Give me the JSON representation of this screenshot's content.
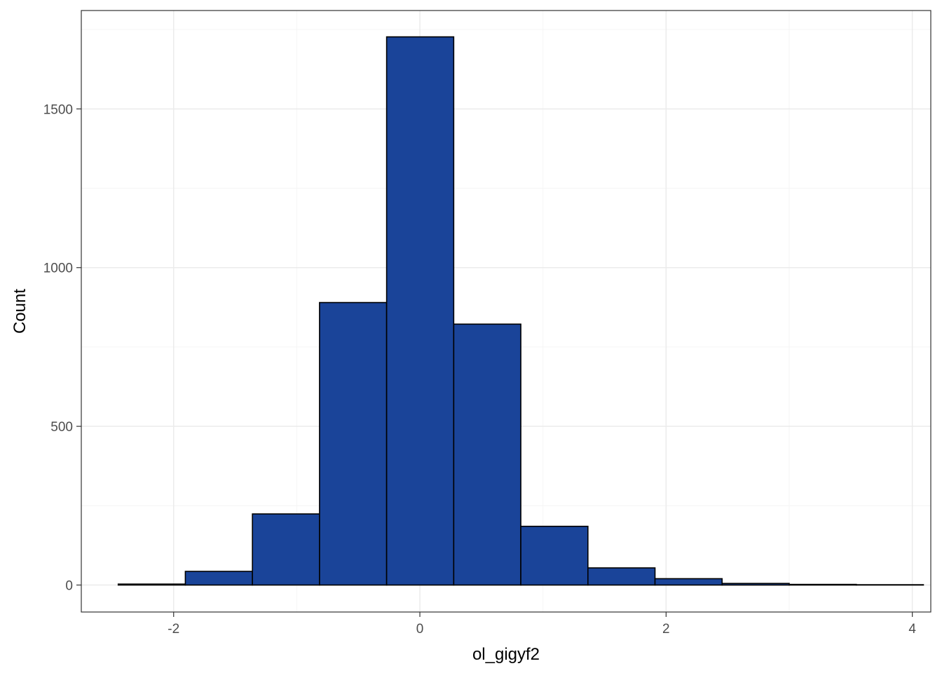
{
  "chart_data": {
    "type": "bar",
    "xlabel": "ol_gigyf2",
    "ylabel": "Count",
    "xlim": [
      -2.75,
      4.15
    ],
    "ylim": [
      -85,
      1810
    ],
    "x_ticks": [
      -2,
      0,
      2,
      4
    ],
    "y_ticks": [
      0,
      500,
      1000,
      1500
    ],
    "x_tick_labels": [
      "-2",
      "0",
      "2",
      "4"
    ],
    "y_tick_labels": [
      "0",
      "500",
      "1000",
      "1500"
    ],
    "grid": true,
    "legend": "none",
    "bin_width": 0.545,
    "bins": [
      {
        "x0": -2.45,
        "x1": -1.905,
        "count": 3
      },
      {
        "x0": -1.905,
        "x1": -1.36,
        "count": 43
      },
      {
        "x0": -1.36,
        "x1": -0.815,
        "count": 224
      },
      {
        "x0": -0.815,
        "x1": -0.27,
        "count": 890
      },
      {
        "x0": -0.27,
        "x1": 0.275,
        "count": 1727
      },
      {
        "x0": 0.275,
        "x1": 0.82,
        "count": 822
      },
      {
        "x0": 0.82,
        "x1": 1.365,
        "count": 185
      },
      {
        "x0": 1.365,
        "x1": 1.91,
        "count": 54
      },
      {
        "x0": 1.91,
        "x1": 2.455,
        "count": 20
      },
      {
        "x0": 2.455,
        "x1": 3.0,
        "count": 5
      },
      {
        "x0": 3.0,
        "x1": 3.545,
        "count": 2
      },
      {
        "x0": 3.545,
        "x1": 4.09,
        "count": 1
      }
    ],
    "colors": {
      "fill": "#1a4499",
      "outline": "#000000",
      "grid_major": "#ebebeb",
      "grid_minor": "#f5f5f5",
      "panel_border": "#333333",
      "tick_text": "#4d4d4d"
    }
  }
}
